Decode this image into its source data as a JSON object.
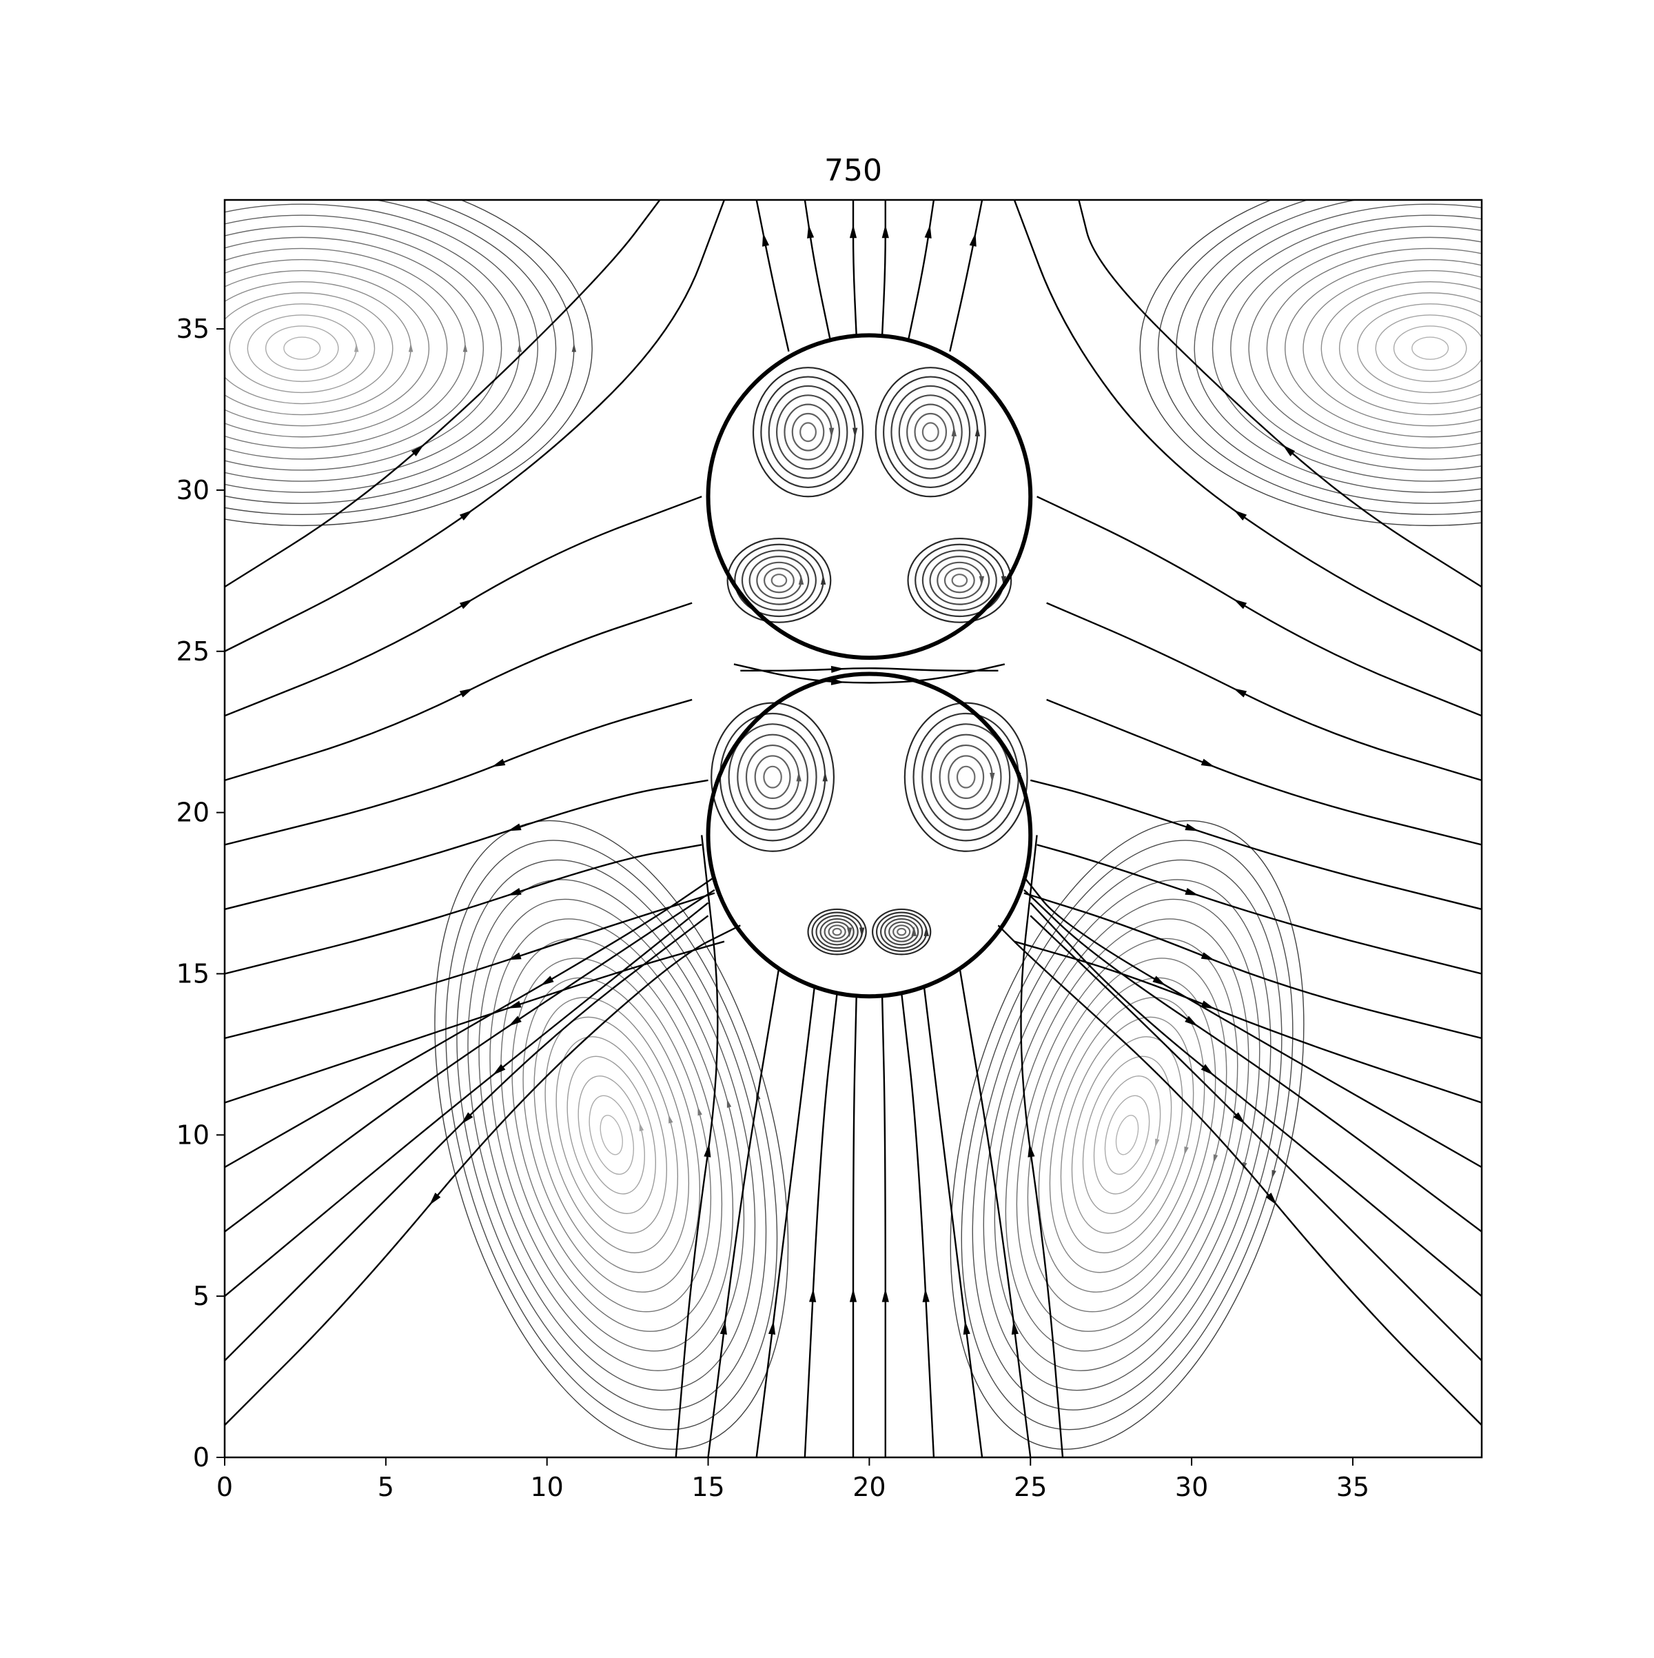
{
  "chart_data": {
    "type": "streamplot",
    "title": "750",
    "xlabel": "",
    "ylabel": "",
    "xlim": [
      0,
      39
    ],
    "ylim": [
      0,
      39
    ],
    "grid": false,
    "x_ticks": [
      0,
      5,
      10,
      15,
      20,
      25,
      30,
      35
    ],
    "y_ticks": [
      0,
      5,
      10,
      15,
      20,
      25,
      30,
      35
    ],
    "circles": [
      {
        "cx": 20,
        "cy": 29.8,
        "r": 5
      },
      {
        "cx": 20,
        "cy": 19.3,
        "r": 5
      }
    ],
    "vortices": [
      {
        "x": 2.4,
        "y": 34.4,
        "rx": 9,
        "ry": 5.5,
        "angle": 0,
        "rotation": "ccw"
      },
      {
        "x": 37.4,
        "y": 34.4,
        "rx": 9,
        "ry": 5.5,
        "angle": 0,
        "rotation": "cw"
      },
      {
        "x": 12,
        "y": 10,
        "rx": 5,
        "ry": 10,
        "angle": 15,
        "rotation": "ccw"
      },
      {
        "x": 28,
        "y": 10,
        "rx": 5,
        "ry": 10,
        "angle": -15,
        "rotation": "cw"
      },
      {
        "x": 18.1,
        "y": 31.8,
        "rx": 1.7,
        "ry": 2.0,
        "angle": 0,
        "rotation": "cw"
      },
      {
        "x": 21.9,
        "y": 31.8,
        "rx": 1.7,
        "ry": 2.0,
        "angle": 0,
        "rotation": "ccw"
      },
      {
        "x": 17.2,
        "y": 27.2,
        "rx": 1.6,
        "ry": 1.3,
        "angle": 0,
        "rotation": "ccw"
      },
      {
        "x": 22.8,
        "y": 27.2,
        "rx": 1.6,
        "ry": 1.3,
        "angle": 0,
        "rotation": "cw"
      },
      {
        "x": 17.0,
        "y": 21.1,
        "rx": 1.9,
        "ry": 2.3,
        "angle": 0,
        "rotation": "ccw"
      },
      {
        "x": 23.0,
        "y": 21.1,
        "rx": 1.9,
        "ry": 2.3,
        "angle": 0,
        "rotation": "cw"
      },
      {
        "x": 19.0,
        "y": 16.3,
        "rx": 0.9,
        "ry": 0.7,
        "angle": 0,
        "rotation": "cw"
      },
      {
        "x": 21.0,
        "y": 16.3,
        "rx": 0.9,
        "ry": 0.7,
        "angle": 0,
        "rotation": "ccw"
      }
    ],
    "flow_lines": [
      {
        "points": [
          [
            19.5,
            0
          ],
          [
            19.5,
            10
          ],
          [
            19.6,
            14.3
          ]
        ],
        "direction": "forward"
      },
      {
        "points": [
          [
            20.5,
            0
          ],
          [
            20.5,
            10
          ],
          [
            20.4,
            14.3
          ]
        ],
        "direction": "forward"
      },
      {
        "points": [
          [
            18,
            0
          ],
          [
            18.5,
            10
          ],
          [
            19,
            14.4
          ]
        ],
        "direction": "forward"
      },
      {
        "points": [
          [
            22,
            0
          ],
          [
            21.5,
            10
          ],
          [
            21,
            14.4
          ]
        ],
        "direction": "forward"
      },
      {
        "points": [
          [
            16.5,
            0
          ],
          [
            17.5,
            8
          ],
          [
            18.3,
            14.6
          ]
        ],
        "direction": "forward"
      },
      {
        "points": [
          [
            23.5,
            0
          ],
          [
            22.5,
            8
          ],
          [
            21.7,
            14.6
          ]
        ],
        "direction": "forward"
      },
      {
        "points": [
          [
            15,
            0
          ],
          [
            16,
            8
          ],
          [
            17.2,
            15.2
          ]
        ],
        "direction": "forward"
      },
      {
        "points": [
          [
            25,
            0
          ],
          [
            24,
            8
          ],
          [
            22.8,
            15.2
          ]
        ],
        "direction": "forward"
      },
      {
        "points": [
          [
            14,
            0
          ],
          [
            14.5,
            6
          ],
          [
            15.5,
            13
          ],
          [
            14.8,
            19.3
          ]
        ],
        "direction": "forward"
      },
      {
        "points": [
          [
            26,
            0
          ],
          [
            25.5,
            6
          ],
          [
            24.5,
            13
          ],
          [
            25.2,
            19.3
          ]
        ],
        "direction": "forward"
      },
      {
        "points": [
          [
            0,
            13
          ],
          [
            6,
            14.5
          ],
          [
            12,
            16.5
          ],
          [
            15.2,
            17.5
          ]
        ],
        "direction": "backward"
      },
      {
        "points": [
          [
            0,
            11
          ],
          [
            6,
            13
          ],
          [
            12,
            15
          ],
          [
            15.5,
            16
          ]
        ],
        "direction": "backward"
      },
      {
        "points": [
          [
            39,
            13
          ],
          [
            33,
            14.5
          ],
          [
            28,
            16.5
          ],
          [
            24.8,
            17.5
          ]
        ],
        "direction": "backward"
      },
      {
        "points": [
          [
            39,
            11
          ],
          [
            33,
            13
          ],
          [
            28,
            15
          ],
          [
            24.5,
            16
          ]
        ],
        "direction": "backward"
      },
      {
        "points": [
          [
            0,
            1
          ],
          [
            4,
            5
          ],
          [
            9,
            11
          ],
          [
            14,
            15.5
          ],
          [
            16,
            16.5
          ]
        ],
        "direction": "backward"
      },
      {
        "points": [
          [
            0,
            3
          ],
          [
            5,
            8
          ],
          [
            10,
            13
          ],
          [
            15,
            16.8
          ]
        ],
        "direction": "backward"
      },
      {
        "points": [
          [
            0,
            5
          ],
          [
            6,
            10
          ],
          [
            11,
            14
          ],
          [
            15,
            17.2
          ]
        ],
        "direction": "backward"
      },
      {
        "points": [
          [
            0,
            7
          ],
          [
            6,
            11.5
          ],
          [
            12,
            15.5
          ],
          [
            15.2,
            17.6
          ]
        ],
        "direction": "backward"
      },
      {
        "points": [
          [
            0,
            9
          ],
          [
            7,
            13
          ],
          [
            13,
            16.5
          ],
          [
            15.2,
            18
          ]
        ],
        "direction": "backward"
      },
      {
        "points": [
          [
            39,
            1
          ],
          [
            35,
            5
          ],
          [
            30,
            11
          ],
          [
            25,
            15.5
          ],
          [
            24,
            16.5
          ]
        ],
        "direction": "backward"
      },
      {
        "points": [
          [
            39,
            3
          ],
          [
            34,
            8
          ],
          [
            29,
            13
          ],
          [
            25,
            16.8
          ]
        ],
        "direction": "backward"
      },
      {
        "points": [
          [
            39,
            5
          ],
          [
            33,
            10
          ],
          [
            28,
            14
          ],
          [
            25,
            17.2
          ]
        ],
        "direction": "backward"
      },
      {
        "points": [
          [
            39,
            7
          ],
          [
            33,
            11.5
          ],
          [
            27,
            15.5
          ],
          [
            24.8,
            17.6
          ]
        ],
        "direction": "backward"
      },
      {
        "points": [
          [
            39,
            9
          ],
          [
            32,
            13
          ],
          [
            26,
            16.5
          ],
          [
            24.8,
            18
          ]
        ],
        "direction": "backward"
      },
      {
        "points": [
          [
            0,
            15
          ],
          [
            6,
            16.5
          ],
          [
            12,
            18.5
          ],
          [
            14.8,
            19
          ]
        ],
        "direction": "backward"
      },
      {
        "points": [
          [
            0,
            17
          ],
          [
            6,
            18.5
          ],
          [
            12,
            20.5
          ],
          [
            15,
            21
          ]
        ],
        "direction": "backward"
      },
      {
        "points": [
          [
            0,
            19
          ],
          [
            6,
            20.5
          ],
          [
            11,
            22.5
          ],
          [
            14.5,
            23.5
          ]
        ],
        "direction": "backward"
      },
      {
        "points": [
          [
            39,
            15
          ],
          [
            33,
            16.5
          ],
          [
            27,
            18.5
          ],
          [
            25.2,
            19
          ]
        ],
        "direction": "backward"
      },
      {
        "points": [
          [
            39,
            17
          ],
          [
            33,
            18.5
          ],
          [
            27,
            20.5
          ],
          [
            25,
            21
          ]
        ],
        "direction": "backward"
      },
      {
        "points": [
          [
            39,
            19
          ],
          [
            33,
            20.5
          ],
          [
            28,
            22.5
          ],
          [
            25.5,
            23.5
          ]
        ],
        "direction": "backward"
      },
      {
        "points": [
          [
            0,
            21
          ],
          [
            5,
            22.5
          ],
          [
            10,
            25
          ],
          [
            14.5,
            26.5
          ]
        ],
        "direction": "forward"
      },
      {
        "points": [
          [
            0,
            23
          ],
          [
            5,
            25
          ],
          [
            10,
            28
          ],
          [
            14.8,
            29.8
          ]
        ],
        "direction": "forward"
      },
      {
        "points": [
          [
            0,
            25
          ],
          [
            5,
            27.5
          ],
          [
            10,
            31
          ],
          [
            14,
            35
          ],
          [
            15.5,
            39
          ]
        ],
        "direction": "forward"
      },
      {
        "points": [
          [
            39,
            21
          ],
          [
            34,
            22.5
          ],
          [
            29,
            25
          ],
          [
            25.5,
            26.5
          ]
        ],
        "direction": "forward"
      },
      {
        "points": [
          [
            39,
            23
          ],
          [
            34,
            25
          ],
          [
            29,
            28
          ],
          [
            25.2,
            29.8
          ]
        ],
        "direction": "forward"
      },
      {
        "points": [
          [
            39,
            25
          ],
          [
            34,
            27.5
          ],
          [
            29,
            31
          ],
          [
            26,
            35
          ],
          [
            24.5,
            39
          ]
        ],
        "direction": "forward"
      },
      {
        "points": [
          [
            0,
            27
          ],
          [
            4,
            29.5
          ],
          [
            8,
            33
          ],
          [
            12,
            37
          ],
          [
            13.5,
            39
          ]
        ],
        "direction": "forward"
      },
      {
        "points": [
          [
            39,
            27
          ],
          [
            35,
            29.5
          ],
          [
            31,
            33
          ],
          [
            27,
            37
          ],
          [
            26.5,
            39
          ]
        ],
        "direction": "forward"
      },
      {
        "points": [
          [
            19.5,
            39
          ],
          [
            19.5,
            37
          ],
          [
            19.6,
            34.8
          ]
        ],
        "direction": "backward"
      },
      {
        "points": [
          [
            20.5,
            39
          ],
          [
            20.5,
            37
          ],
          [
            20.4,
            34.8
          ]
        ],
        "direction": "backward"
      },
      {
        "points": [
          [
            18,
            39
          ],
          [
            18.3,
            37
          ],
          [
            18.8,
            34.6
          ]
        ],
        "direction": "backward"
      },
      {
        "points": [
          [
            22,
            39
          ],
          [
            21.7,
            37
          ],
          [
            21.2,
            34.6
          ]
        ],
        "direction": "backward"
      },
      {
        "points": [
          [
            16.5,
            39
          ],
          [
            17,
            36.5
          ],
          [
            17.5,
            34.3
          ]
        ],
        "direction": "backward"
      },
      {
        "points": [
          [
            23.5,
            39
          ],
          [
            23,
            36.5
          ],
          [
            22.5,
            34.3
          ]
        ],
        "direction": "backward"
      },
      {
        "points": [
          [
            15.8,
            24.6
          ],
          [
            18,
            24.1
          ],
          [
            20,
            24.0
          ],
          [
            22,
            24.1
          ],
          [
            24.2,
            24.6
          ]
        ],
        "direction": "forward"
      },
      {
        "points": [
          [
            16,
            24.4
          ],
          [
            18,
            24.4
          ],
          [
            20,
            24.5
          ],
          [
            22,
            24.4
          ],
          [
            24,
            24.4
          ]
        ],
        "direction": "forward"
      }
    ]
  }
}
